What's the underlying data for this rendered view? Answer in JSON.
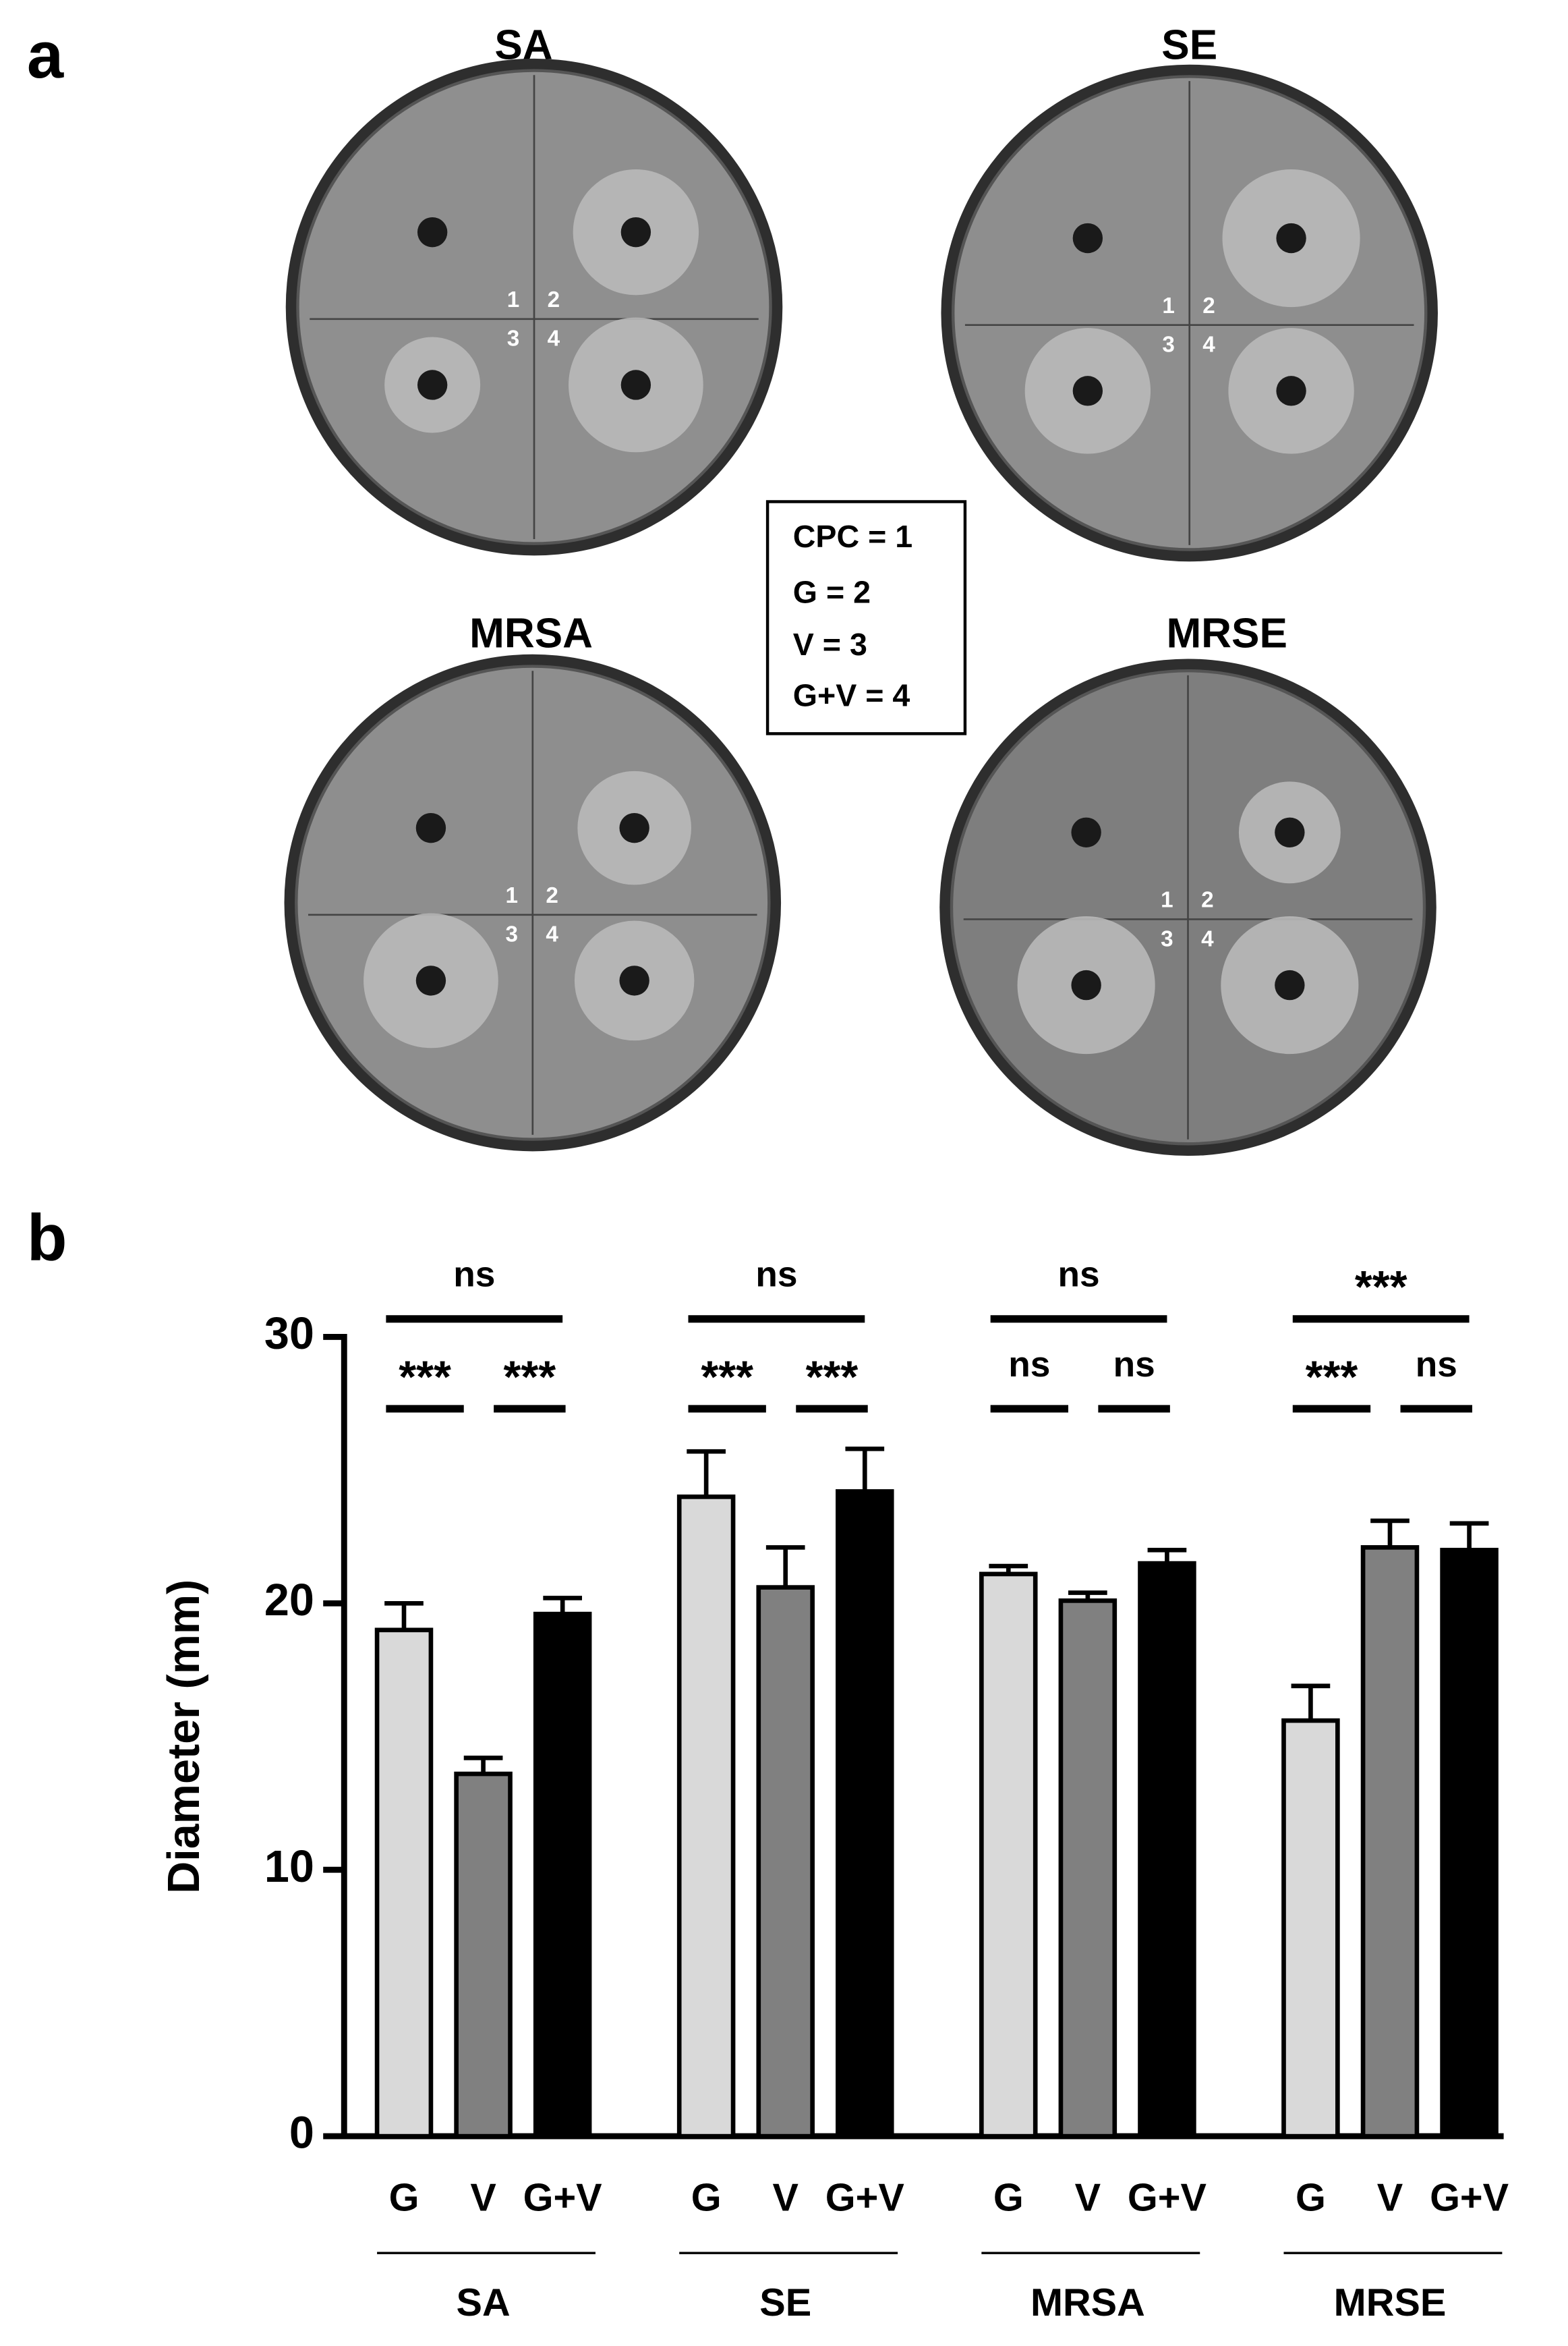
{
  "panel_labels": [
    "a",
    "b"
  ],
  "plates": [
    {
      "title": "SA",
      "wells": [
        "1",
        "2",
        "3",
        "4"
      ]
    },
    {
      "title": "SE",
      "wells": [
        "1",
        "2",
        "3",
        "4"
      ]
    },
    {
      "title": "MRSA",
      "wells": [
        "1",
        "2",
        "3",
        "4"
      ]
    },
    {
      "title": "MRSE",
      "wells": [
        "1",
        "2",
        "3",
        "4"
      ]
    }
  ],
  "legend_box": [
    "CPC = 1",
    "G = 2",
    "V = 3",
    "G+V = 4"
  ],
  "chart_data": {
    "type": "bar",
    "ylabel": "Diameter (mm)",
    "categories": [
      "SA",
      "SE",
      "MRSA",
      "MRSE"
    ],
    "series": [
      {
        "name": "G",
        "color": "#d9d9d9",
        "values": [
          19.0,
          24.0,
          21.1,
          15.6
        ],
        "errors": [
          1.0,
          1.7,
          0.3,
          1.3
        ]
      },
      {
        "name": "V",
        "color": "#808080",
        "values": [
          13.6,
          20.6,
          20.1,
          22.1
        ],
        "errors": [
          0.6,
          1.5,
          0.3,
          1.0
        ]
      },
      {
        "name": "G+V",
        "color": "#000000",
        "values": [
          19.6,
          24.2,
          21.5,
          22.0
        ],
        "errors": [
          0.6,
          1.6,
          0.5,
          1.0
        ]
      }
    ],
    "ylim": [
      0,
      30
    ],
    "yticks": [
      0,
      10,
      20,
      30
    ],
    "significance": [
      {
        "top": "ns",
        "left": "***",
        "right": "***"
      },
      {
        "top": "ns",
        "left": "***",
        "right": "***"
      },
      {
        "top": "ns",
        "left": "ns",
        "right": "ns"
      },
      {
        "top": "***",
        "left": "***",
        "right": "ns"
      }
    ]
  }
}
